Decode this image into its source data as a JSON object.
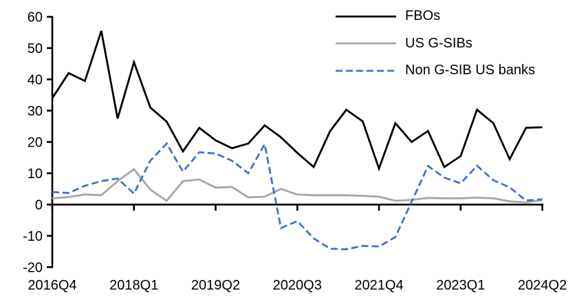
{
  "chart_data": {
    "type": "line",
    "title": "",
    "xlabel": "",
    "ylabel": "",
    "categories": [
      "2016Q4",
      "2017Q1",
      "2017Q2",
      "2017Q3",
      "2017Q4",
      "2018Q1",
      "2018Q2",
      "2018Q3",
      "2018Q4",
      "2019Q1",
      "2019Q2",
      "2019Q3",
      "2019Q4",
      "2020Q1",
      "2020Q2",
      "2020Q3",
      "2020Q4",
      "2021Q1",
      "2021Q2",
      "2021Q3",
      "2021Q4",
      "2022Q1",
      "2022Q2",
      "2022Q3",
      "2022Q4",
      "2023Q1",
      "2023Q2",
      "2023Q3",
      "2023Q4",
      "2024Q1",
      "2024Q2"
    ],
    "series": [
      {
        "name": "FBOs",
        "color": "#000000",
        "style": "solid",
        "values": [
          34,
          42,
          39.5,
          55.5,
          27.5,
          45.5,
          31,
          26.5,
          17,
          24.5,
          20.5,
          18,
          19.5,
          25.3,
          21.5,
          16.5,
          12,
          23.4,
          30.3,
          26.6,
          11.5,
          26,
          20,
          23.5,
          12,
          15.5,
          30.3,
          26,
          14.5,
          24.5,
          24.7
        ]
      },
      {
        "name": "US G-SIBs",
        "color": "#a6a6a6",
        "style": "solid",
        "values": [
          2,
          2.4,
          3.2,
          3,
          7.5,
          11.3,
          4.8,
          1.2,
          7.5,
          8,
          5.4,
          5.6,
          2.3,
          2.5,
          5,
          3.2,
          3,
          3,
          3,
          2.8,
          2.5,
          1.2,
          1.5,
          2.1,
          2,
          2,
          2.2,
          2,
          1,
          0.7,
          1.4
        ]
      },
      {
        "name": "Non G-SIB US banks",
        "color": "#4472c4",
        "style": "dashed",
        "values": [
          4,
          3.7,
          6,
          7.5,
          8.3,
          3.5,
          14,
          19.5,
          10.5,
          16.7,
          16.3,
          14,
          10,
          19.3,
          -7.5,
          -5.3,
          -10.8,
          -14.1,
          -14.3,
          -13.2,
          -13.4,
          -10.4,
          0.9,
          12.3,
          8.6,
          6.8,
          12.4,
          7.8,
          5.5,
          1.3,
          1.7
        ]
      }
    ],
    "x_tick_labels": [
      "2016Q4",
      "2018Q1",
      "2019Q2",
      "2020Q3",
      "2021Q4",
      "2023Q1",
      "2024Q2"
    ],
    "x_tick_indices": [
      0,
      5,
      10,
      15,
      20,
      25,
      30
    ],
    "y_ticks": [
      -20,
      -10,
      0,
      10,
      20,
      30,
      40,
      50,
      60
    ],
    "ylim": [
      -20,
      60
    ],
    "grid": false,
    "legend_position": "top-right",
    "axis_color": "#000000"
  }
}
